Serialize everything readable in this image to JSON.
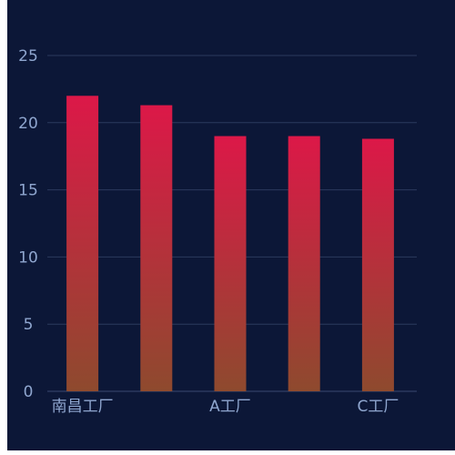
{
  "chart_data": {
    "type": "bar",
    "categories": [
      "南昌工厂",
      "",
      "A工厂",
      "",
      "C工厂"
    ],
    "values": [
      22,
      21.3,
      19,
      19,
      18.8
    ],
    "ylim": [
      0,
      25
    ],
    "yticks": [
      "0",
      "5",
      "10",
      "15",
      "20",
      "25"
    ],
    "xtick_labels_shown": [
      "南昌工厂",
      "A工厂",
      "C工厂"
    ],
    "grid": true,
    "legend": "none",
    "colors": {
      "background": "#0c1737",
      "bar_top": "#dc1848",
      "bar_bottom": "#8e4a2e",
      "grid": "#2b3a5e",
      "tick_text": "#8fa6cf"
    }
  }
}
